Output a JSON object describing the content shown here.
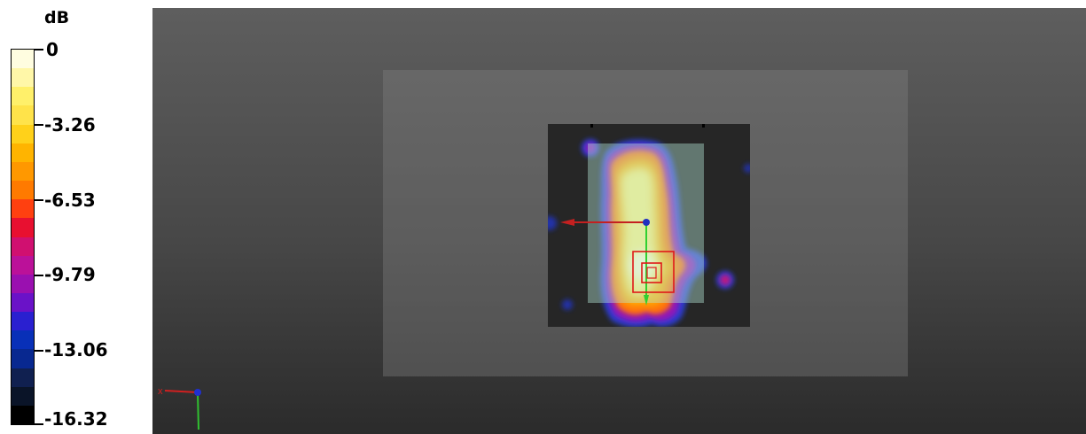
{
  "legend": {
    "unit": "dB",
    "ticks": [
      {
        "label": "0"
      },
      {
        "label": "-3.26"
      },
      {
        "label": "-6.53"
      },
      {
        "label": "-9.79"
      },
      {
        "label": "-13.06"
      },
      {
        "label": "-16.32"
      }
    ],
    "colors": [
      "#fffde0",
      "#fff7a8",
      "#fff06a",
      "#ffe34a",
      "#ffd11a",
      "#ffb400",
      "#ff9800",
      "#ff7a00",
      "#ff4010",
      "#e81030",
      "#d01070",
      "#bb1199",
      "#9a10b0",
      "#6a12c8",
      "#2a20d0",
      "#0830b8",
      "#082890",
      "#102050",
      "#0a1428",
      "#000000"
    ]
  },
  "viewport": {
    "background_top": "#5e5e5e",
    "background_bottom": "#2b2b2b"
  }
}
